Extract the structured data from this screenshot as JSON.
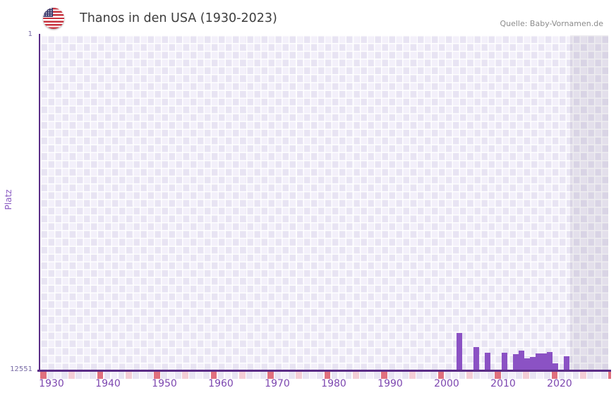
{
  "header": {
    "title": "Thanos in den USA (1930-2023)",
    "source": "Quelle: Baby-Vornamen.de",
    "flag_icon": "us-flag-icon"
  },
  "chart_data": {
    "type": "bar",
    "title": "Thanos in den USA (1930-2023)",
    "source": "Quelle: Baby-Vornamen.de",
    "xlabel": "",
    "ylabel": "Platz",
    "grid": true,
    "legend": false,
    "y_axis": {
      "top_tick": "1",
      "bottom_tick": "12551",
      "min": 1,
      "max": 12551,
      "inverted": true
    },
    "x_axis": {
      "ticks": [
        1930,
        1940,
        1950,
        1960,
        1970,
        1980,
        1990,
        2000,
        2010,
        2020
      ],
      "range": [
        1928,
        2029
      ]
    },
    "no_data_region_start_year": 2022,
    "series": [
      {
        "name": "Platz",
        "points": [
          {
            "year": 2002,
            "rank": 11160
          },
          {
            "year": 2005,
            "rank": 11670
          },
          {
            "year": 2007,
            "rank": 11880
          },
          {
            "year": 2010,
            "rank": 11880
          },
          {
            "year": 2012,
            "rank": 11940
          },
          {
            "year": 2013,
            "rank": 11820
          },
          {
            "year": 2014,
            "rank": 12110
          },
          {
            "year": 2015,
            "rank": 12050
          },
          {
            "year": 2016,
            "rank": 11920
          },
          {
            "year": 2017,
            "rank": 11920
          },
          {
            "year": 2018,
            "rank": 11850
          },
          {
            "year": 2019,
            "rank": 12290
          },
          {
            "year": 2021,
            "rank": 12020
          }
        ]
      }
    ]
  },
  "colors": {
    "bar": "#8b52c4",
    "axis_line": "#5b2d87",
    "x_tick_label": "#7d47b0",
    "y_tick_label": "#776aa5",
    "y_axis_title": "#8a5bc2",
    "grid_cell_dark": "#e8e4f3",
    "grid_cell_light": "#f3f0fa",
    "strip_red": "#e0707e",
    "strip_pink": "#f4cdd6",
    "title_text": "#3d3d3d",
    "source_text": "#8c8c8c"
  }
}
